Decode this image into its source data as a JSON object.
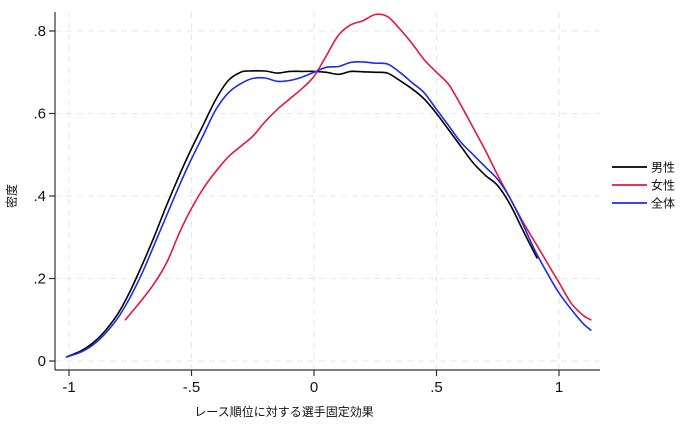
{
  "chart_data": {
    "type": "line",
    "title": "",
    "xlabel": "レース順位に対する選手固定効果",
    "ylabel": "密度",
    "xlim": [
      -1.06,
      1.17
    ],
    "ylim": [
      -0.02,
      0.86
    ],
    "xticks": [
      -1,
      -0.5,
      0,
      0.5,
      1
    ],
    "xtick_labels": [
      "-1",
      "-.5",
      "0",
      ".5",
      "1"
    ],
    "yticks": [
      0,
      0.2,
      0.4,
      0.6,
      0.8
    ],
    "ytick_labels": [
      "0",
      ".2",
      ".4",
      ".6",
      ".8"
    ],
    "grid": true,
    "legend_position": "right",
    "series": [
      {
        "name": "男性",
        "color": "#000000",
        "x": [
          -1.01,
          -0.95,
          -0.9,
          -0.85,
          -0.8,
          -0.75,
          -0.7,
          -0.65,
          -0.6,
          -0.55,
          -0.5,
          -0.45,
          -0.4,
          -0.35,
          -0.3,
          -0.27,
          -0.2,
          -0.15,
          -0.1,
          -0.05,
          0.0,
          0.05,
          0.1,
          0.15,
          0.2,
          0.25,
          0.3,
          0.35,
          0.4,
          0.45,
          0.5,
          0.55,
          0.6,
          0.65,
          0.7,
          0.75,
          0.8,
          0.85,
          0.91
        ],
        "y": [
          0.01,
          0.025,
          0.045,
          0.075,
          0.115,
          0.17,
          0.235,
          0.305,
          0.38,
          0.45,
          0.515,
          0.575,
          0.635,
          0.68,
          0.7,
          0.703,
          0.703,
          0.698,
          0.702,
          0.702,
          0.702,
          0.7,
          0.695,
          0.702,
          0.701,
          0.7,
          0.698,
          0.68,
          0.66,
          0.635,
          0.6,
          0.56,
          0.52,
          0.48,
          0.45,
          0.425,
          0.38,
          0.32,
          0.25
        ]
      },
      {
        "name": "女性",
        "color": "#e3173e",
        "x": [
          -0.77,
          -0.7,
          -0.65,
          -0.6,
          -0.55,
          -0.5,
          -0.45,
          -0.4,
          -0.35,
          -0.3,
          -0.25,
          -0.2,
          -0.15,
          -0.1,
          -0.05,
          0.0,
          0.05,
          0.1,
          0.15,
          0.2,
          0.25,
          0.3,
          0.35,
          0.4,
          0.45,
          0.5,
          0.55,
          0.6,
          0.65,
          0.7,
          0.75,
          0.8,
          0.85,
          0.9,
          0.95,
          1.0,
          1.05,
          1.1,
          1.13
        ],
        "y": [
          0.1,
          0.15,
          0.19,
          0.24,
          0.31,
          0.37,
          0.42,
          0.46,
          0.495,
          0.52,
          0.545,
          0.58,
          0.61,
          0.635,
          0.66,
          0.69,
          0.74,
          0.79,
          0.815,
          0.825,
          0.84,
          0.835,
          0.805,
          0.77,
          0.73,
          0.7,
          0.67,
          0.62,
          0.565,
          0.51,
          0.45,
          0.395,
          0.34,
          0.29,
          0.24,
          0.19,
          0.14,
          0.11,
          0.1
        ]
      },
      {
        "name": "全体",
        "color": "#1a2ee8",
        "x": [
          -1.01,
          -0.95,
          -0.9,
          -0.85,
          -0.8,
          -0.75,
          -0.7,
          -0.65,
          -0.6,
          -0.55,
          -0.5,
          -0.45,
          -0.4,
          -0.35,
          -0.3,
          -0.25,
          -0.2,
          -0.15,
          -0.1,
          -0.05,
          0.0,
          0.05,
          0.1,
          0.15,
          0.2,
          0.25,
          0.3,
          0.35,
          0.4,
          0.45,
          0.5,
          0.55,
          0.6,
          0.65,
          0.7,
          0.75,
          0.8,
          0.85,
          0.9,
          0.95,
          1.0,
          1.05,
          1.1,
          1.13
        ],
        "y": [
          0.01,
          0.022,
          0.04,
          0.068,
          0.105,
          0.155,
          0.215,
          0.285,
          0.355,
          0.425,
          0.49,
          0.55,
          0.61,
          0.65,
          0.672,
          0.685,
          0.686,
          0.678,
          0.68,
          0.688,
          0.7,
          0.712,
          0.714,
          0.724,
          0.725,
          0.722,
          0.72,
          0.7,
          0.675,
          0.65,
          0.61,
          0.57,
          0.53,
          0.5,
          0.47,
          0.44,
          0.395,
          0.335,
          0.27,
          0.215,
          0.165,
          0.125,
          0.09,
          0.075
        ]
      }
    ]
  },
  "legend": {
    "items": [
      {
        "label": "男性",
        "color": "#000000"
      },
      {
        "label": "女性",
        "color": "#e3173e"
      },
      {
        "label": "全体",
        "color": "#1a2ee8"
      }
    ]
  },
  "colors": {
    "axis": "#333333",
    "grid": "#e6e6e6"
  }
}
